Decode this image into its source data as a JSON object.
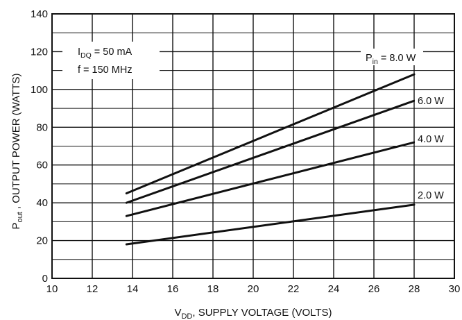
{
  "chart_data": {
    "type": "line",
    "xlabel": {
      "main": "V",
      "sub": "DD",
      "rest": ", SUPPLY VOLTAGE (VOLTS)"
    },
    "ylabel": {
      "main": "P",
      "sub": "out",
      "rest": " , OUTPUT POWER (WATTS)"
    },
    "xlim": [
      10,
      30
    ],
    "ylim": [
      0,
      140
    ],
    "xticks": [
      "10",
      "12",
      "14",
      "16",
      "18",
      "20",
      "22",
      "24",
      "26",
      "28",
      "30"
    ],
    "yticks": [
      "0",
      "20",
      "40",
      "60",
      "80",
      "100",
      "120",
      "140"
    ],
    "grid": true,
    "conditions": [
      {
        "main": "I",
        "sub": "DQ",
        "rest": " = 50 mA"
      },
      {
        "main": "f = 150 MHz",
        "sub": "",
        "rest": ""
      }
    ],
    "series": [
      {
        "name": "P_in = 8.0 W",
        "label": {
          "main": "P",
          "sub": "in",
          "rest": " = 8.0 W"
        },
        "x": [
          13.7,
          28
        ],
        "y": [
          45,
          108
        ]
      },
      {
        "name": "6.0 W",
        "label": {
          "main": "6.0 W",
          "sub": "",
          "rest": ""
        },
        "x": [
          13.7,
          28
        ],
        "y": [
          40,
          94
        ]
      },
      {
        "name": "4.0 W",
        "label": {
          "main": "4.0 W",
          "sub": "",
          "rest": ""
        },
        "x": [
          13.7,
          28
        ],
        "y": [
          33,
          72
        ]
      },
      {
        "name": "2.0 W",
        "label": {
          "main": "2.0 W",
          "sub": "",
          "rest": ""
        },
        "x": [
          13.7,
          28
        ],
        "y": [
          18,
          39
        ]
      }
    ]
  }
}
